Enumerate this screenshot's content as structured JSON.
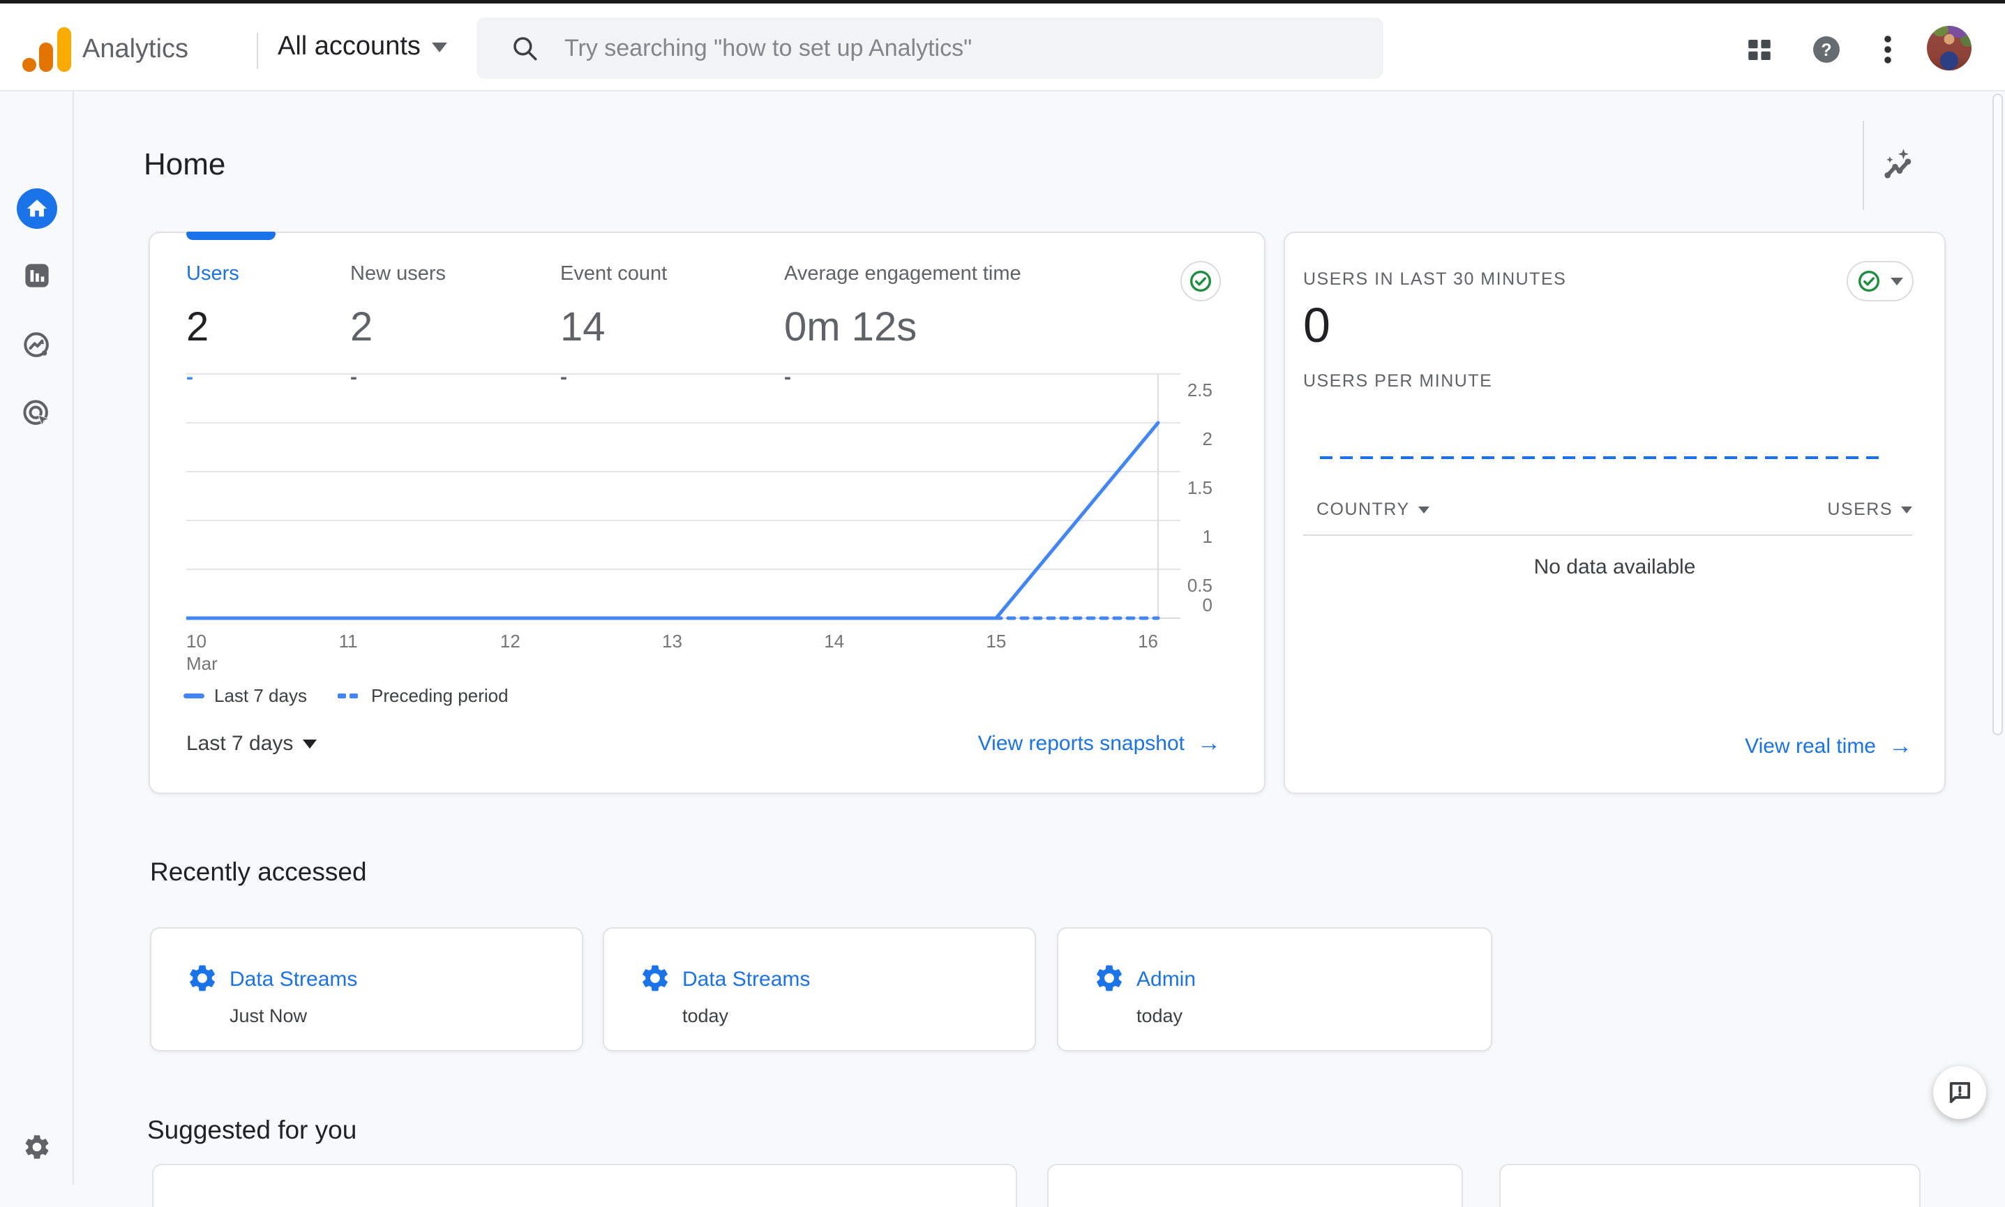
{
  "topbar": {
    "product_name": "Analytics",
    "account_selector": "All accounts",
    "search": {
      "placeholder": "Try searching \"how to set up Analytics\""
    }
  },
  "page": {
    "title": "Home"
  },
  "overview_card": {
    "metrics": [
      {
        "label": "Users",
        "value": "2",
        "delta": "-",
        "active": true
      },
      {
        "label": "New users",
        "value": "2",
        "delta": "-",
        "active": false
      },
      {
        "label": "Event count",
        "value": "14",
        "delta": "-",
        "active": false
      },
      {
        "label": "Average engagement time",
        "value": "0m 12s",
        "delta": "-",
        "active": false
      }
    ],
    "legend": [
      {
        "label": "Last 7 days",
        "style": "solid"
      },
      {
        "label": "Preceding period",
        "style": "dashed"
      }
    ],
    "date_range": "Last 7 days",
    "footer_link": "View reports snapshot",
    "arrow": "→"
  },
  "chart_data": {
    "type": "line",
    "title": "Users trend (last 7 days vs preceding period)",
    "x": [
      "10",
      "11",
      "12",
      "13",
      "14",
      "15",
      "16"
    ],
    "x_sublabel": "Mar",
    "series": [
      {
        "name": "Preceding period",
        "style": "dashed",
        "values": [
          0,
          0,
          0,
          0,
          0,
          0,
          0
        ]
      },
      {
        "name": "Last 7 days",
        "style": "solid",
        "values": [
          0,
          0,
          0,
          0,
          0,
          0,
          2
        ]
      }
    ],
    "yticks": [
      0,
      0.5,
      1,
      1.5,
      2,
      2.5
    ],
    "ylim": [
      0,
      2.5
    ],
    "grid": true,
    "line_color": "#4285f4",
    "legend_position": "bottom"
  },
  "realtime_card": {
    "title": "USERS IN LAST 30 MINUTES",
    "value": "0",
    "chart_label": "USERS PER MINUTE",
    "columns": {
      "country": "COUNTRY",
      "users": "USERS"
    },
    "empty_message": "No data available",
    "footer_link": "View real time",
    "arrow": "→"
  },
  "recently_accessed": {
    "title": "Recently accessed",
    "items": [
      {
        "label": "Data Streams",
        "time": "Just Now"
      },
      {
        "label": "Data Streams",
        "time": "today"
      },
      {
        "label": "Admin",
        "time": "today"
      }
    ]
  },
  "suggested": {
    "title": "Suggested for you"
  },
  "colors": {
    "accent_blue": "#1a73e8",
    "chart_blue": "#4285f4",
    "success_green": "#1e8e3e",
    "logo_amber": "#f9ab00",
    "logo_orange": "#e37400",
    "grid_gray": "#e3e5e8"
  }
}
